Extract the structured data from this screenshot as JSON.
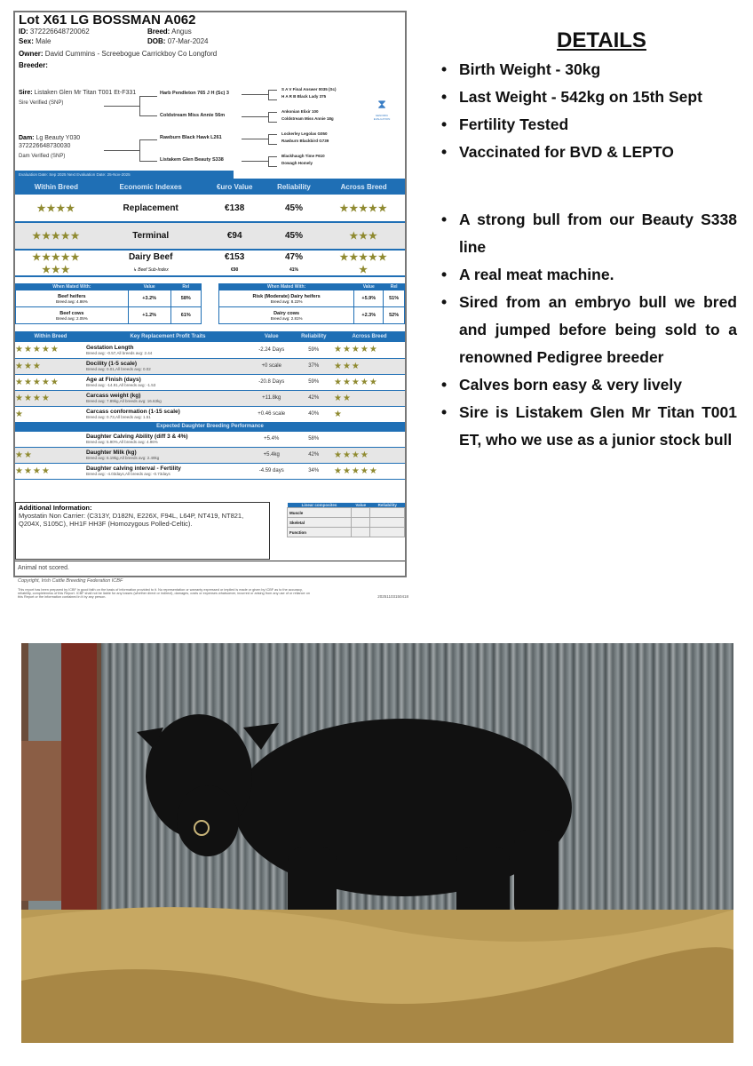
{
  "sheet": {
    "title": "Lot X61 LG BOSSMAN A062",
    "id_label": "ID:",
    "id": "372226648720062",
    "breed_label": "Breed:",
    "breed": "Angus",
    "sex_label": "Sex:",
    "sex": "Male",
    "dob_label": "DOB:",
    "dob": "07-Mar-2024",
    "owner_label": "Owner:",
    "owner": "David Cummins - Screebogue Carrickboy Co Longford",
    "breeder_label": "Breeder:",
    "sire_label": "Sire:",
    "sire": "Listaken Glen Mr Titan T001 Et-F331",
    "sire_verified": "Sire Verified (SNP)",
    "dam_label": "Dam:",
    "dam": "Lg Beauty Y030 372226648730030",
    "dam_verified": "Dam Verified (SNP)",
    "pedigree": {
      "ss": "Harb Pendleton 765 J H (Sc) 3",
      "sd": "Coldstream Miss Annie 56m",
      "ds": "Rawburn Black Hawk L261",
      "dd": "Listakem Glen Beauty S338",
      "sss": "S A V Final Answer 0035 (Sc)",
      "ssd": "H A R B Black Lady 375",
      "sds": "Ankonian Elixir 100",
      "sdd": "Coldstream Miss Annie 18g",
      "dss": "Lockerley Legolas G050",
      "dsd": "Rawburn Blackbird G739",
      "dds": "Blackhaugh Time F610",
      "ddd": "Dowagh Homely"
    },
    "genomic_logo": "GENOMIC EVALUATION",
    "eval_date": "Evaluation Date:   Sep 2025        Next Evaluation Date:   25-Nov-2025",
    "eco_headers": [
      "Within Breed",
      "Economic Indexes",
      "€uro Value",
      "Reliability",
      "Across Breed"
    ],
    "eco_rows": [
      {
        "within": 4,
        "name": "Replacement",
        "value": "€138",
        "rel": "45%",
        "across": 5
      },
      {
        "within": 5,
        "name": "Terminal",
        "value": "€94",
        "rel": "45%",
        "across": 3
      },
      {
        "within": 5,
        "name": "Dairy Beef",
        "value": "€153",
        "rel": "47%",
        "across": 5
      },
      {
        "within": 3,
        "name": "Beef Sub-Index",
        "value": "€90",
        "rel": "41%",
        "across": 1
      }
    ],
    "mated_left": {
      "headers": [
        "When Mated With:",
        "Value",
        "Rel"
      ],
      "rows": [
        {
          "name": "Beef heifers",
          "avg": "Breed avg: 4.86%",
          "value": "+3.2%",
          "rel": "58%"
        },
        {
          "name": "Beef cows",
          "avg": "Breed avg: 2.05%",
          "value": "+1.2%",
          "rel": "61%"
        }
      ]
    },
    "mated_right": {
      "headers": [
        "When Mated With:",
        "Value",
        "Rel"
      ],
      "rows": [
        {
          "name": "Risk (Moderate) Dairy heifers",
          "avg": "Breed avg: 8.22%",
          "value": "+5.9%",
          "rel": "51%"
        },
        {
          "name": "Dairy cows",
          "avg": "Breed avg: 2.81%",
          "value": "+2.3%",
          "rel": "52%"
        }
      ]
    },
    "trait_headers": [
      "Within Breed",
      "Key Replacement Profit Traits",
      "Value",
      "Reliability",
      "Across Breed"
    ],
    "traits": [
      {
        "within": 5,
        "name": "Gestation Length",
        "avg": "Breed avg: -0.57,All breeds avg: 2.44",
        "value": "-2.24 Days",
        "rel": "59%",
        "across": 5
      },
      {
        "within": 3,
        "name": "Docility (1-5 scale)",
        "avg": "Breed avg: 0.01,All breeds avg: 0.02",
        "value": "+0 scale",
        "rel": "37%",
        "across": 3
      },
      {
        "within": 5,
        "name": "Age at Finish (days)",
        "avg": "Breed avg: -14.91,All breeds avg: -1.53",
        "value": "-20.8 Days",
        "rel": "59%",
        "across": 5
      },
      {
        "within": 4,
        "name": "Carcass weight (kg)",
        "avg": "Breed avg: 7.89kg,All breeds avg: 16.63kg",
        "value": "+11.8kg",
        "rel": "42%",
        "across": 2
      },
      {
        "within": 1,
        "name": "Carcass conformation (1-15 scale)",
        "avg": "Breed avg: 0.73,All breeds avg: 1.51",
        "value": "+0.46 scale",
        "rel": "40%",
        "across": 1
      }
    ],
    "daughter_header": "Expected Daughter Breeding Performance",
    "daughter": [
      {
        "within": 0,
        "name": "Daughter Calving Ability (diff 3 & 4%)",
        "avg": "Breed avg: 5.90%,All breeds avg: 4.96%",
        "value": "+5.4%",
        "rel": "58%",
        "across": 0
      },
      {
        "within": 2,
        "name": "Daughter Milk (kg)",
        "avg": "Breed avg: 6.19kg,All breeds avg: 2.49kg",
        "value": "+5.4kg",
        "rel": "42%",
        "across": 4
      },
      {
        "within": 4,
        "name": "Daughter calving interval - Fertility",
        "avg": "Breed avg: -4.03days,All breeds avg: -0.73days",
        "value": "-4.59 days",
        "rel": "34%",
        "across": 5
      }
    ],
    "additional_label": "Additional Information:",
    "additional": "Myostatin Non Carrier: (C313Y, D182N, E226X, F94L, L64P, NT419, NT821, Q204X, S105C), HH1F HH3F (Homozygous Polled-Celtic).",
    "linear_headers": [
      "Linear composites",
      "Value",
      "Reliability"
    ],
    "linear_rows": [
      "Muscle",
      "Skeletal",
      "Function"
    ],
    "not_scored": "Animal not scored.",
    "copyright": "Copyright, Irish Cattle Breeding Federation ICBF",
    "disclaimer": "This report has been prepared by ICBF in good faith on the basis of information provided to it. No representation or warranty expressed or implied is made or given by ICBF as to the accuracy, reliability, completeness of this Report. ICBF shall not be liable for any losses (whether direct or indirect), damages, costs or expenses whatsoever, incurred or arising from any use of or reliance on this Report or the information contained in it by any person.",
    "report_code": "20251103150418"
  },
  "details": {
    "title": "DETAILS",
    "items_top": [
      "Birth Weight - 30kg",
      "Last Weight - 542kg on 15th Sept",
      "Fertility Tested",
      "Vaccinated for BVD & LEPTO"
    ],
    "items_bottom": [
      "A strong bull from our Beauty S338 line",
      "A real meat machine.",
      "Sired from an embryo bull we bred and jumped before being sold to a renowned Pedigree breeder",
      "Calves born easy & very lively",
      "Sire is Listakem Glen Mr Titan T001 ET, who we use as a junior stock bull"
    ]
  },
  "colors": {
    "header_blue": "#1f6fb5",
    "star": "#8f8a30"
  }
}
